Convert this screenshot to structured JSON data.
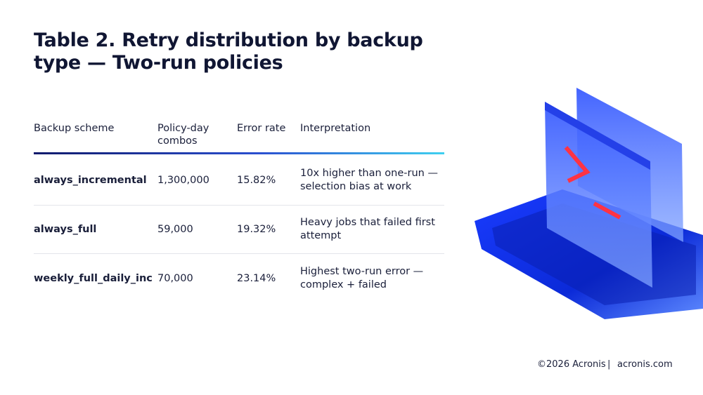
{
  "header": {
    "title": "Table 2. Retry distribution by backup type — Two-run policies"
  },
  "table": {
    "columns": [
      "Backup scheme",
      "Policy-day combos",
      "Error rate",
      "Interpretation"
    ],
    "rows": [
      [
        "always_incremental",
        "1,300,000",
        "15.82%",
        "10x higher than one-run — selection bias at work"
      ],
      [
        "always_full",
        "59,000",
        "19.32%",
        "Heavy jobs that failed first attempt"
      ],
      [
        "weekly_full_daily_inc",
        "70,000",
        "23.14%",
        "Highest two-run error — complex + failed"
      ]
    ]
  },
  "footer": {
    "copyright": "©2026 Acronis",
    "separator": "|",
    "site": "acronis.com"
  }
}
